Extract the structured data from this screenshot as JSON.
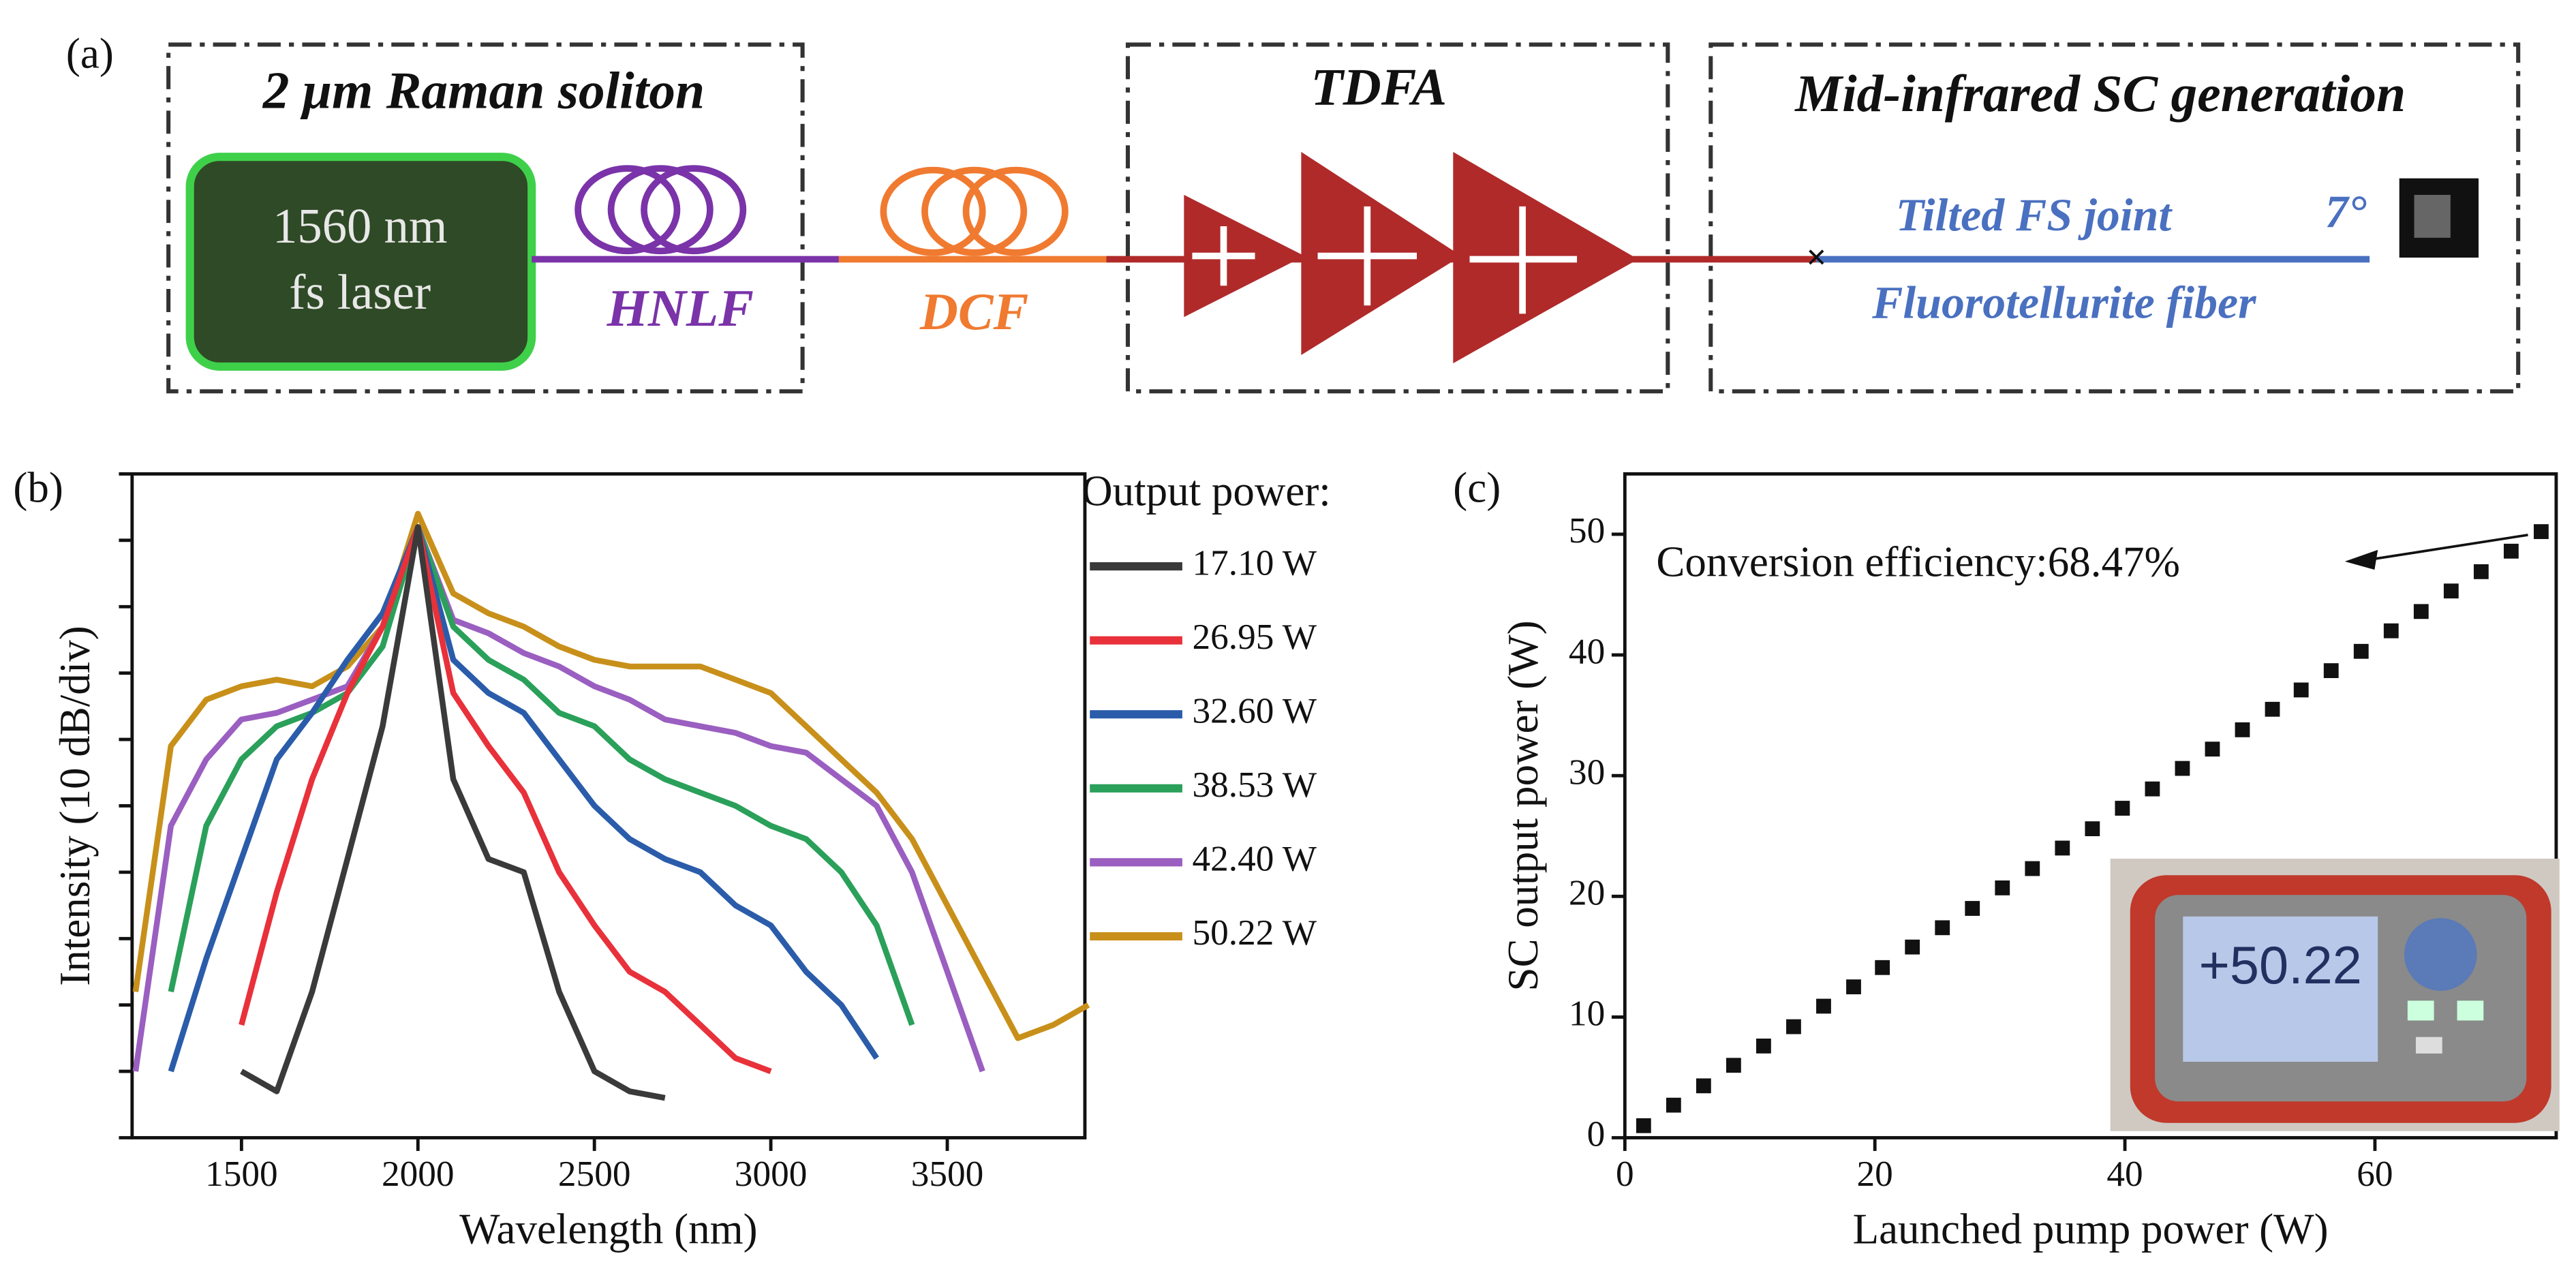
{
  "panel_labels": [
    "(a)",
    "(b)",
    "(c)"
  ],
  "diagram": {
    "sections": [
      "2 μm Raman soliton",
      "TDFA",
      "Mid-infrared SC generation"
    ],
    "laser": [
      "1560 nm",
      "fs laser"
    ],
    "fibers": [
      "HNLF",
      "DCF"
    ],
    "joint": "Tilted FS joint",
    "angle": "7°",
    "fiber": "Fluorotellurite fiber"
  },
  "chart_data": [
    {
      "type": "line",
      "x_label": "Wavelength (nm)",
      "y_label": "Intensity (10 dB/div)",
      "legend_title": "Output power:",
      "x": [
        1200,
        1300,
        1400,
        1500,
        1600,
        1700,
        1800,
        1900,
        2000,
        2100,
        2200,
        2300,
        2400,
        2500,
        2600,
        2700,
        2800,
        2900,
        3000,
        3100,
        3200,
        3300,
        3400,
        3500,
        3600,
        3700,
        3800,
        3900
      ],
      "xlim": [
        1190,
        3890
      ],
      "xticks": [
        1500,
        2000,
        2500,
        3000,
        3500
      ],
      "ylim": [
        0,
        10
      ],
      "yticks": [
        0,
        1,
        2,
        3,
        4,
        5,
        6,
        7,
        8,
        9,
        10
      ],
      "series": [
        {
          "name": "17.10 W",
          "color": "#3a3a3a",
          "values": [
            null,
            null,
            null,
            1,
            0.7,
            2.2,
            4.2,
            6.2,
            9.2,
            5.4,
            4.2,
            4,
            2.2,
            1,
            0.7,
            0.6,
            null,
            null,
            null,
            null,
            null,
            null,
            null,
            null,
            null,
            null,
            null,
            null
          ]
        },
        {
          "name": "26.95 W",
          "color": "#e8313a",
          "values": [
            null,
            null,
            null,
            1.7,
            3.7,
            5.4,
            6.7,
            7.7,
            9.2,
            6.7,
            5.9,
            5.2,
            4,
            3.2,
            2.5,
            2.2,
            1.7,
            1.2,
            1,
            null,
            null,
            null,
            null,
            null,
            null,
            null,
            null,
            null
          ]
        },
        {
          "name": "32.60 W",
          "color": "#2a5caa",
          "values": [
            null,
            1,
            2.7,
            4.2,
            5.7,
            6.4,
            7.2,
            7.9,
            9.2,
            7.2,
            6.7,
            6.4,
            5.7,
            5,
            4.5,
            4.2,
            4,
            3.5,
            3.2,
            2.5,
            2,
            1.2,
            null,
            null,
            null,
            null,
            null,
            null
          ]
        },
        {
          "name": "38.53 W",
          "color": "#2aa05a",
          "values": [
            null,
            2.2,
            4.7,
            5.7,
            6.2,
            6.4,
            6.7,
            7.4,
            9.2,
            7.7,
            7.2,
            6.9,
            6.4,
            6.2,
            5.7,
            5.4,
            5.2,
            5,
            4.7,
            4.5,
            4,
            3.2,
            1.7,
            null,
            null,
            null,
            null,
            null
          ]
        },
        {
          "name": "42.40 W",
          "color": "#9a5fc0",
          "values": [
            1,
            4.7,
            5.7,
            6.3,
            6.4,
            6.6,
            6.8,
            7.7,
            9.2,
            7.8,
            7.6,
            7.3,
            7.1,
            6.8,
            6.6,
            6.3,
            6.2,
            6.1,
            5.9,
            5.8,
            5.4,
            5,
            4,
            2.5,
            1,
            null,
            null,
            null
          ]
        },
        {
          "name": "50.22 W",
          "color": "#c8901a",
          "values": [
            2.2,
            5.9,
            6.6,
            6.8,
            6.9,
            6.8,
            7.1,
            7.7,
            9.4,
            8.2,
            7.9,
            7.7,
            7.4,
            7.2,
            7.1,
            7.1,
            7.1,
            6.9,
            6.7,
            6.2,
            5.7,
            5.2,
            4.5,
            3.5,
            2.5,
            1.5,
            1.7,
            2
          ]
        }
      ]
    },
    {
      "type": "scatter",
      "x_label": "Launched pump power (W)",
      "y_label": "SC output power (W)",
      "annotation": "Conversion efficiency:68.47%",
      "color": "#111111",
      "x": [
        1.5,
        3.9,
        6.3,
        8.7,
        11.1,
        13.5,
        15.9,
        18.3,
        20.6,
        23.0,
        25.4,
        27.8,
        30.2,
        32.6,
        35.0,
        37.4,
        39.8,
        42.2,
        44.6,
        47.0,
        49.4,
        51.8,
        54.1,
        56.5,
        58.9,
        61.3,
        63.7,
        66.1,
        68.5,
        70.9,
        73.3
      ],
      "values": [
        1.0,
        2.7,
        4.3,
        6.0,
        7.6,
        9.2,
        10.9,
        12.5,
        14.1,
        15.8,
        17.4,
        19.0,
        20.7,
        22.3,
        24.0,
        25.6,
        27.3,
        28.9,
        30.6,
        32.2,
        33.8,
        35.5,
        37.1,
        38.7,
        40.3,
        42.0,
        43.6,
        45.3,
        46.9,
        48.6,
        50.22
      ],
      "xlim": [
        0,
        74.5
      ],
      "xticks": [
        0,
        20,
        40,
        60
      ],
      "ylim": [
        0,
        55
      ],
      "yticks": [
        0,
        10,
        20,
        30,
        40,
        50
      ]
    }
  ],
  "inset": {
    "display": "+50.22"
  }
}
